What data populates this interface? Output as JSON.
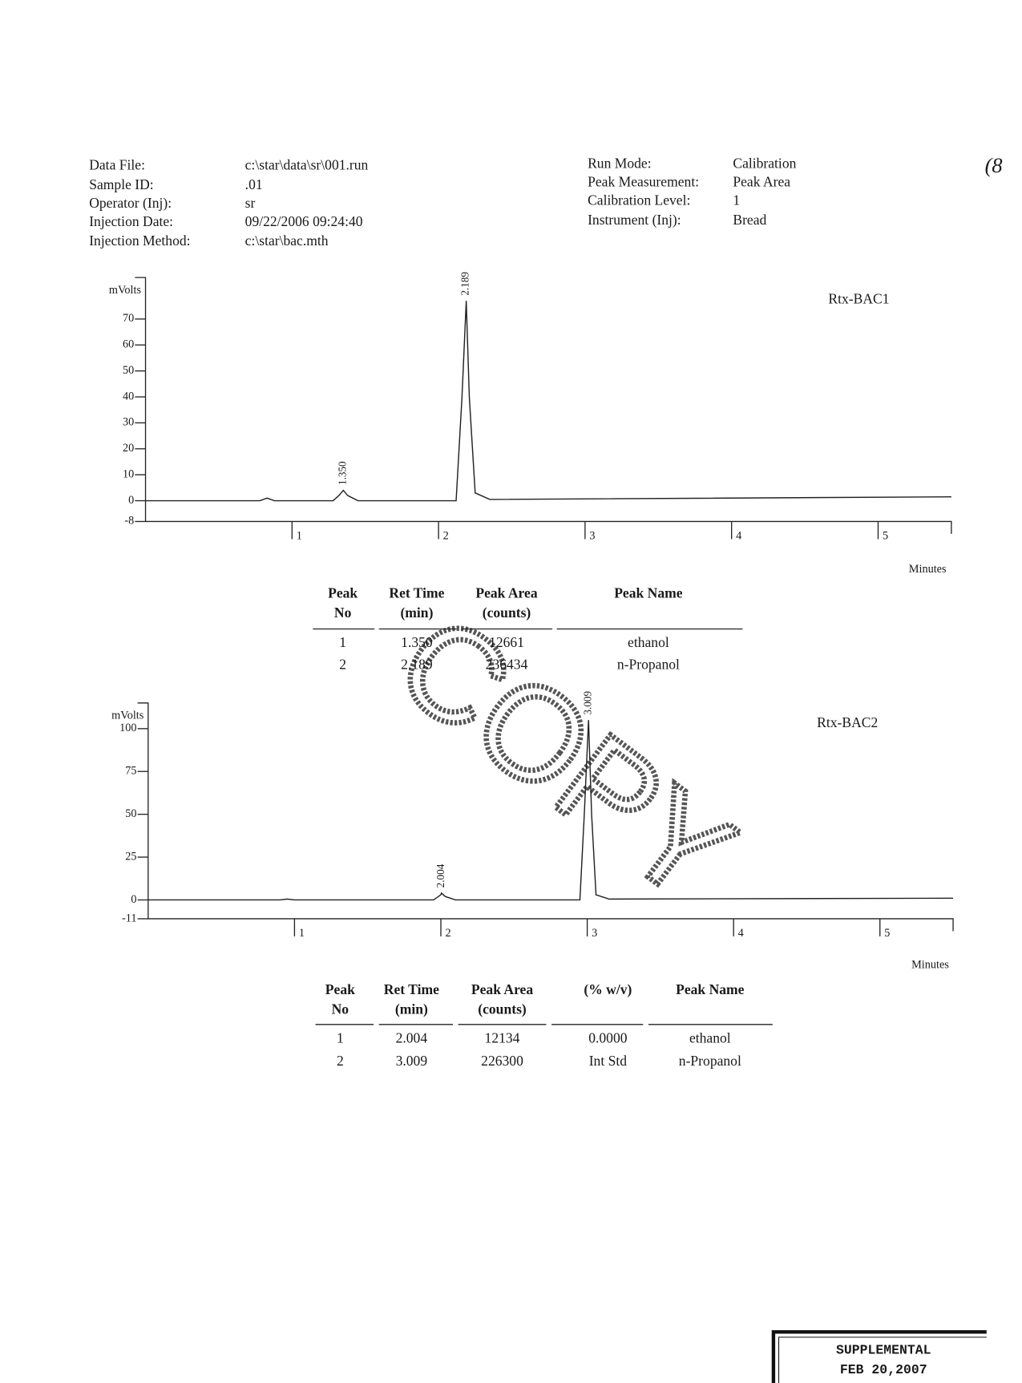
{
  "header": {
    "left": [
      {
        "label": "Data File:",
        "value": "c:\\star\\data\\sr\\001.run"
      },
      {
        "label": "Sample ID:",
        "value": ".01"
      },
      {
        "label": "Operator (Inj):",
        "value": "sr"
      },
      {
        "label": "Injection Date:",
        "value": "09/22/2006 09:24:40"
      },
      {
        "label": "Injection Method:",
        "value": "c:\\star\\bac.mth"
      }
    ],
    "right": [
      {
        "label": "Run Mode:",
        "value": "Calibration"
      },
      {
        "label": "Peak Measurement:",
        "value": "Peak Area"
      },
      {
        "label": "Calibration Level:",
        "value": "1"
      },
      {
        "label": "Instrument (Inj):",
        "value": "Bread"
      }
    ]
  },
  "corner_note": "(8",
  "chart_data": [
    {
      "type": "line",
      "title": "Rtx-BAC1",
      "y_label": "mVolts",
      "x_label": "Minutes",
      "x": [
        0,
        0.78,
        0.83,
        0.88,
        1.28,
        1.32,
        1.35,
        1.38,
        1.45,
        2.12,
        2.16,
        2.189,
        2.21,
        2.25,
        2.35,
        5.5
      ],
      "series": [
        {
          "color": "#222222",
          "values": [
            0,
            0,
            1,
            0,
            0,
            2,
            4,
            2,
            0,
            0,
            40,
            77,
            40,
            3,
            0.5,
            1.5
          ]
        }
      ],
      "xlim": [
        0,
        5.5
      ],
      "ylim": [
        -8,
        86
      ],
      "xticks": [
        1,
        2,
        3,
        4,
        5
      ],
      "yticks": [
        -8,
        0,
        10,
        20,
        30,
        40,
        50,
        60,
        70
      ],
      "peaks": [
        {
          "x": 1.35,
          "y": 4,
          "label": "1.350"
        },
        {
          "x": 2.189,
          "y": 77,
          "label": "2.189"
        }
      ]
    },
    {
      "type": "line",
      "title": "Rtx-BAC2",
      "y_label": "mVolts",
      "x_label": "Minutes",
      "x": [
        0,
        0.9,
        0.95,
        1.0,
        1.95,
        2.0,
        2.004,
        2.03,
        2.1,
        2.95,
        2.98,
        3.009,
        3.03,
        3.06,
        3.15,
        5.5
      ],
      "series": [
        {
          "color": "#222222",
          "values": [
            0,
            0,
            0.5,
            0,
            0,
            3,
            4,
            2,
            0,
            0,
            50,
            105,
            50,
            3,
            0.5,
            1
          ]
        }
      ],
      "xlim": [
        0,
        5.5
      ],
      "ylim": [
        -11,
        115
      ],
      "xticks": [
        1,
        2,
        3,
        4,
        5
      ],
      "yticks": [
        -11,
        0,
        25,
        50,
        75,
        100
      ],
      "peaks": [
        {
          "x": 2.004,
          "y": 4,
          "label": "2.004"
        },
        {
          "x": 3.009,
          "y": 105,
          "label": "3.009"
        }
      ]
    }
  ],
  "tables": [
    {
      "columns": [
        [
          "Peak",
          "No"
        ],
        [
          "Ret Time",
          "(min)"
        ],
        [
          "Peak Area",
          "(counts)"
        ],
        [
          "Peak Name"
        ]
      ],
      "rows": [
        [
          "1",
          "1.350",
          "12661",
          "ethanol"
        ],
        [
          "2",
          "2.189",
          "236434",
          "n-Propanol"
        ]
      ]
    },
    {
      "columns": [
        [
          "Peak",
          "No"
        ],
        [
          "Ret Time",
          "(min)"
        ],
        [
          "Peak Area",
          "(counts)"
        ],
        [
          "(% w/v)"
        ],
        [
          "Peak Name"
        ]
      ],
      "rows": [
        [
          "1",
          "2.004",
          "12134",
          "0.0000",
          "ethanol"
        ],
        [
          "2",
          "3.009",
          "226300",
          "Int Std",
          "n-Propanol"
        ]
      ]
    }
  ],
  "watermark": "COPY",
  "stamp": [
    "SUPPLEMENTAL",
    "FEB 20,2007"
  ]
}
